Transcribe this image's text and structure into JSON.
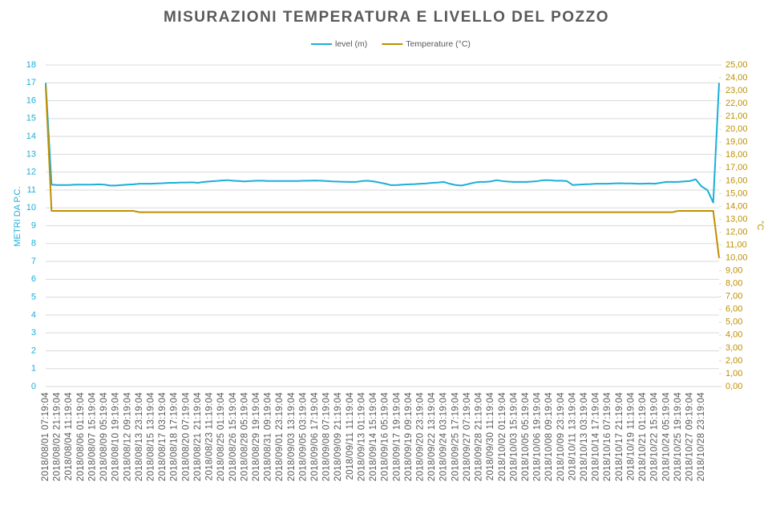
{
  "chart_data": {
    "type": "line",
    "title": "MISURAZIONI TEMPERATURA E LIVELLO DEL POZZO",
    "y_label": "METRI DA P.C.",
    "y2_label": "°C",
    "categories": [
      "2018/08/01 07:19:04",
      null,
      "2018/08/02 21:19:04",
      null,
      "2018/08/04 11:19:04",
      null,
      "2018/08/06 01:19:04",
      null,
      "2018/08/07 15:19:04",
      null,
      "2018/08/09 05:19:04",
      null,
      "2018/08/10 19:19:04",
      null,
      "2018/08/12 09:19:04",
      null,
      "2018/08/13 23:19:04",
      null,
      "2018/08/15 13:19:04",
      null,
      "2018/08/17 03:19:04",
      null,
      "2018/08/18 17:19:04",
      null,
      "2018/08/20 07:19:04",
      null,
      "2018/08/21 21:19:04",
      null,
      "2018/08/23 11:19:04",
      null,
      "2018/08/25 01:19:04",
      null,
      "2018/08/26 15:19:04",
      null,
      "2018/08/28 05:19:04",
      null,
      "2018/08/29 19:19:04",
      null,
      "2018/08/31 09:19:04",
      null,
      "2018/09/01 23:19:04",
      null,
      "2018/09/03 13:19:04",
      null,
      "2018/09/05 03:19:04",
      null,
      "2018/09/06 17:19:04",
      null,
      "2018/09/08 07:19:04",
      null,
      "2018/09/09 21:19:04",
      null,
      "2018/09/11 11:19:04",
      null,
      "2018/09/13 01:19:04",
      null,
      "2018/09/14 15:19:04",
      null,
      "2018/09/16 05:19:04",
      null,
      "2018/09/17 19:19:04",
      null,
      "2018/09/19 09:19:04",
      null,
      "2018/09/20 23:19:04",
      null,
      "2018/09/22 13:19:04",
      null,
      "2018/09/24 03:19:04",
      null,
      "2018/09/25 17:19:04",
      null,
      "2018/09/27 07:19:04",
      null,
      "2018/09/28 21:19:04",
      null,
      "2018/09/30 11:19:04",
      null,
      "2018/10/02 01:19:04",
      null,
      "2018/10/03 15:19:04",
      null,
      "2018/10/05 05:19:04",
      null,
      "2018/10/06 19:19:04",
      null,
      "2018/10/08 09:19:04",
      null,
      "2018/10/09 23:19:04",
      null,
      "2018/10/11 13:19:04",
      null,
      "2018/10/13 03:19:04",
      null,
      "2018/10/14 17:19:04",
      null,
      "2018/10/16 07:19:04",
      null,
      "2018/10/17 21:19:04",
      null,
      "2018/10/19 11:19:04",
      null,
      "2018/10/21 01:19:04",
      null,
      "2018/10/22 15:19:04",
      null,
      "2018/10/24 05:19:04",
      null,
      "2018/10/25 19:19:04",
      null,
      "2018/10/27 09:19:04",
      null,
      "2018/10/28 23:19:04",
      null,
      null,
      null
    ],
    "series": [
      {
        "name": "level (m)",
        "color": "#1aafd8",
        "values": [
          17.0,
          11.3,
          11.28,
          11.28,
          11.28,
          11.3,
          11.3,
          11.3,
          11.3,
          11.32,
          11.3,
          11.25,
          11.25,
          11.28,
          11.3,
          11.32,
          11.35,
          11.35,
          11.35,
          11.37,
          11.38,
          11.4,
          11.4,
          11.42,
          11.42,
          11.43,
          11.4,
          11.45,
          11.48,
          11.5,
          11.53,
          11.55,
          11.52,
          11.5,
          11.48,
          11.5,
          11.52,
          11.52,
          11.5,
          11.5,
          11.5,
          11.5,
          11.5,
          11.5,
          11.52,
          11.52,
          11.53,
          11.52,
          11.5,
          11.48,
          11.47,
          11.46,
          11.45,
          11.45,
          11.5,
          11.52,
          11.48,
          11.42,
          11.35,
          11.27,
          11.28,
          11.3,
          11.32,
          11.33,
          11.35,
          11.37,
          11.4,
          11.42,
          11.45,
          11.35,
          11.28,
          11.25,
          11.32,
          11.4,
          11.45,
          11.45,
          11.48,
          11.55,
          11.5,
          11.47,
          11.45,
          11.45,
          11.45,
          11.47,
          11.5,
          11.55,
          11.55,
          11.52,
          11.52,
          11.5,
          11.28,
          11.3,
          11.32,
          11.33,
          11.35,
          11.35,
          11.35,
          11.37,
          11.38,
          11.37,
          11.37,
          11.35,
          11.35,
          11.37,
          11.35,
          11.4,
          11.45,
          11.45,
          11.45,
          11.48,
          11.5,
          11.6,
          11.2,
          11.0,
          10.3,
          17.0
        ]
      },
      {
        "name": "Temperature (°C)",
        "color": "#bf9000",
        "axis": "y2",
        "values": [
          23.4,
          13.65,
          13.65,
          13.65,
          13.65,
          13.65,
          13.65,
          13.65,
          13.65,
          13.65,
          13.65,
          13.65,
          13.65,
          13.65,
          13.65,
          13.65,
          13.55,
          13.55,
          13.55,
          13.55,
          13.55,
          13.55,
          13.55,
          13.55,
          13.55,
          13.55,
          13.55,
          13.55,
          13.55,
          13.55,
          13.55,
          13.55,
          13.55,
          13.55,
          13.55,
          13.55,
          13.55,
          13.55,
          13.55,
          13.55,
          13.55,
          13.55,
          13.55,
          13.55,
          13.55,
          13.55,
          13.55,
          13.55,
          13.55,
          13.55,
          13.55,
          13.55,
          13.55,
          13.55,
          13.55,
          13.55,
          13.55,
          13.55,
          13.55,
          13.55,
          13.55,
          13.55,
          13.55,
          13.55,
          13.55,
          13.55,
          13.55,
          13.55,
          13.55,
          13.55,
          13.55,
          13.55,
          13.55,
          13.55,
          13.55,
          13.55,
          13.55,
          13.55,
          13.55,
          13.55,
          13.55,
          13.55,
          13.55,
          13.55,
          13.55,
          13.55,
          13.55,
          13.55,
          13.55,
          13.55,
          13.55,
          13.55,
          13.55,
          13.55,
          13.55,
          13.55,
          13.55,
          13.55,
          13.55,
          13.55,
          13.55,
          13.55,
          13.55,
          13.55,
          13.55,
          13.55,
          13.55,
          13.55,
          13.65,
          13.65,
          13.65,
          13.65,
          13.65,
          13.65,
          13.65,
          10.0
        ]
      }
    ],
    "ylim": [
      0,
      18
    ],
    "yticks": [
      0,
      1,
      2,
      3,
      4,
      5,
      6,
      7,
      8,
      9,
      10,
      11,
      12,
      13,
      14,
      15,
      16,
      17,
      18
    ],
    "y2lim": [
      0,
      25
    ],
    "y2ticks": [
      {
        "value": 0,
        "label": "0,00"
      },
      {
        "value": 1,
        "label": "1,00"
      },
      {
        "value": 2,
        "label": "2,00"
      },
      {
        "value": 3,
        "label": "3,00"
      },
      {
        "value": 4,
        "label": "4,00"
      },
      {
        "value": 5,
        "label": "5,00"
      },
      {
        "value": 6,
        "label": "6,00"
      },
      {
        "value": 7,
        "label": "7,00"
      },
      {
        "value": 8,
        "label": "8,00"
      },
      {
        "value": 9,
        "label": "9,00"
      },
      {
        "value": 10,
        "label": "10,00"
      },
      {
        "value": 11,
        "label": "11,00"
      },
      {
        "value": 12,
        "label": "12,00"
      },
      {
        "value": 13,
        "label": "13,00"
      },
      {
        "value": 14,
        "label": "14,00"
      },
      {
        "value": 15,
        "label": "15,00"
      },
      {
        "value": 16,
        "label": "16,00"
      },
      {
        "value": 17,
        "label": "17,00"
      },
      {
        "value": 18,
        "label": "18,00"
      },
      {
        "value": 19,
        "label": "19,00"
      },
      {
        "value": 20,
        "label": "20,00"
      },
      {
        "value": 21,
        "label": "21,00"
      },
      {
        "value": 22,
        "label": "22,00"
      },
      {
        "value": 23,
        "label": "23,00"
      },
      {
        "value": 24,
        "label": "24,00"
      },
      {
        "value": 25,
        "label": "25,00"
      }
    ],
    "grid": true,
    "legend": "top"
  }
}
